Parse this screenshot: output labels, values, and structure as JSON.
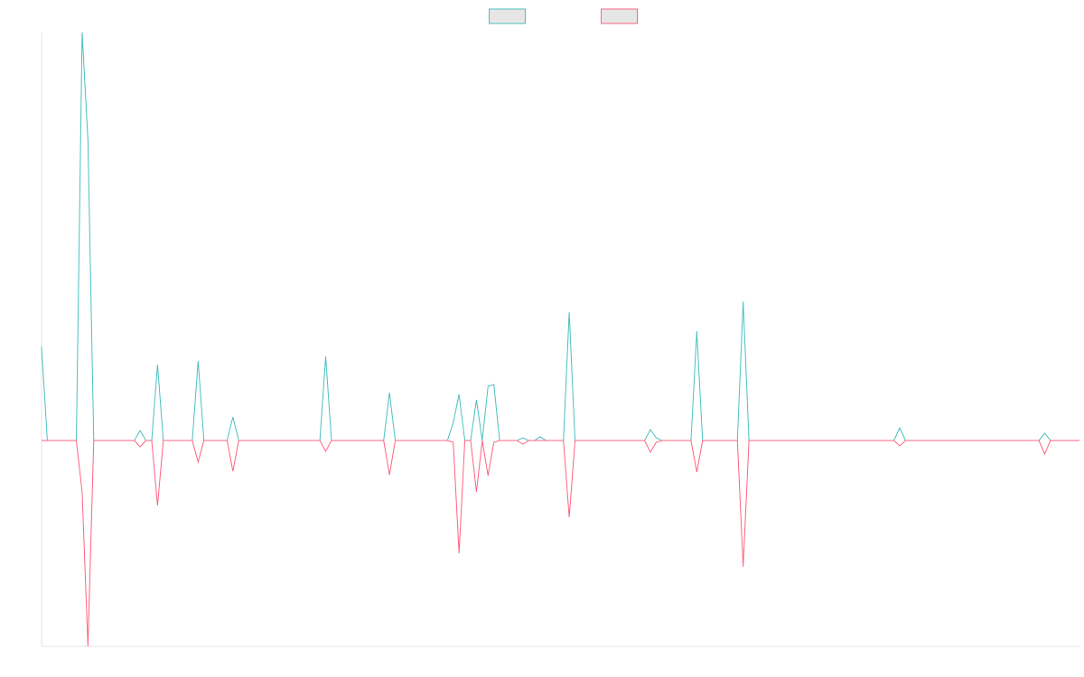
{
  "chart_data": {
    "type": "line",
    "ylim": [
      -228,
      452
    ],
    "legend": "top",
    "series": [
      {
        "color": "#4bc0c0",
        "values": [
          104,
          0,
          0,
          0,
          0,
          0,
          0,
          452,
          333,
          0,
          0,
          0,
          0,
          0,
          0,
          0,
          0,
          11,
          0,
          0,
          84,
          0,
          0,
          0,
          0,
          0,
          0,
          88,
          0,
          0,
          0,
          0,
          0,
          26,
          0,
          0,
          0,
          0,
          0,
          0,
          0,
          0,
          0,
          0,
          0,
          0,
          0,
          0,
          0,
          93,
          0,
          0,
          0,
          0,
          0,
          0,
          0,
          0,
          0,
          0,
          53,
          0,
          0,
          0,
          0,
          0,
          0,
          0,
          0,
          0,
          0,
          20,
          51,
          0,
          0,
          45,
          0,
          60,
          62,
          0,
          0,
          0,
          0,
          3,
          0,
          0,
          4,
          0,
          0,
          0,
          0,
          142,
          0,
          0,
          0,
          0,
          0,
          0,
          0,
          0,
          0,
          0,
          0,
          0,
          0,
          12,
          3,
          0,
          0,
          0,
          0,
          0,
          0,
          121,
          0,
          0,
          0,
          0,
          0,
          0,
          0,
          154,
          0,
          0,
          0,
          0,
          0,
          0,
          0,
          0,
          0,
          0,
          0,
          0,
          0,
          0,
          0,
          0,
          0,
          0,
          0,
          0,
          0,
          0,
          0,
          0,
          0,
          0,
          14,
          0,
          0,
          0,
          0,
          0,
          0,
          0,
          0,
          0,
          0,
          0,
          0,
          0,
          0,
          0,
          0,
          0,
          0,
          0,
          0,
          0,
          0,
          0,
          0,
          8,
          0,
          0,
          0,
          0,
          0,
          0
        ]
      },
      {
        "color": "#ff6384",
        "values": [
          0,
          0,
          0,
          0,
          0,
          0,
          0,
          -57,
          -228,
          0,
          0,
          0,
          0,
          0,
          0,
          0,
          0,
          -7,
          0,
          0,
          -72,
          0,
          0,
          0,
          0,
          0,
          0,
          -24,
          0,
          0,
          0,
          0,
          0,
          -34,
          0,
          0,
          0,
          0,
          0,
          0,
          0,
          0,
          0,
          0,
          0,
          0,
          0,
          0,
          0,
          -12,
          0,
          0,
          0,
          0,
          0,
          0,
          0,
          0,
          0,
          0,
          -38,
          0,
          0,
          0,
          0,
          0,
          0,
          0,
          0,
          0,
          0,
          -2,
          -125,
          0,
          0,
          -57,
          0,
          -39,
          -2,
          0,
          0,
          0,
          0,
          -4,
          0,
          0,
          0,
          0,
          0,
          0,
          0,
          -85,
          0,
          0,
          0,
          0,
          0,
          0,
          0,
          0,
          0,
          0,
          0,
          0,
          0,
          -13,
          -2,
          0,
          0,
          0,
          0,
          0,
          0,
          -35,
          0,
          0,
          0,
          0,
          0,
          0,
          0,
          -140,
          0,
          0,
          0,
          0,
          0,
          0,
          0,
          0,
          0,
          0,
          0,
          0,
          0,
          0,
          0,
          0,
          0,
          0,
          0,
          0,
          0,
          0,
          0,
          0,
          0,
          0,
          -6,
          0,
          0,
          0,
          0,
          0,
          0,
          0,
          0,
          0,
          0,
          0,
          0,
          0,
          0,
          0,
          0,
          0,
          0,
          0,
          0,
          0,
          0,
          0,
          0,
          -15,
          0,
          0,
          0,
          0,
          0,
          0
        ]
      }
    ]
  }
}
